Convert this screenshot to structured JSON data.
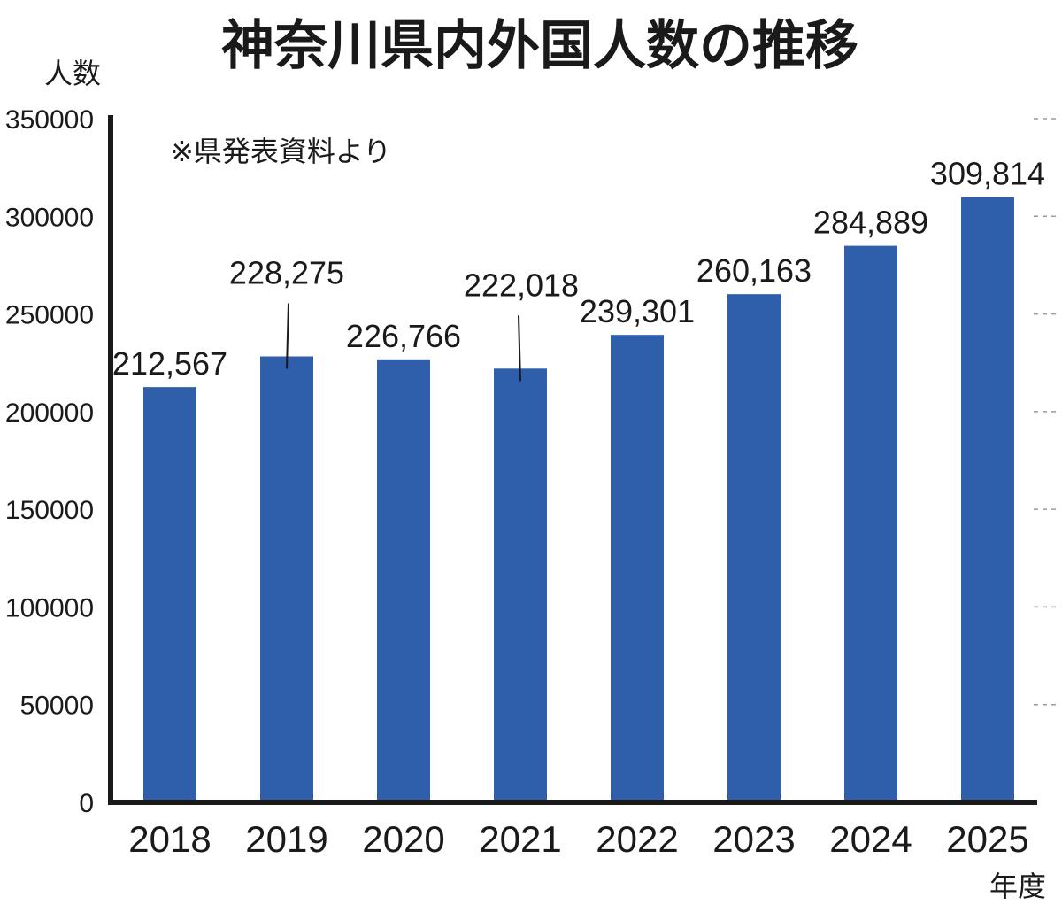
{
  "chart_data": {
    "type": "bar",
    "title": "神奈川県内外国人数の推移",
    "ylabel": "人数",
    "xlabel": "年度",
    "note": "※県発表資料より",
    "categories": [
      "2018",
      "2019",
      "2020",
      "2021",
      "2022",
      "2023",
      "2024",
      "2025"
    ],
    "values": [
      212567,
      228275,
      226766,
      222018,
      239301,
      260163,
      284889,
      309814
    ],
    "value_labels": [
      "212,567",
      "228,275",
      "226,766",
      "222,018",
      "239,301",
      "260,163",
      "284,889",
      "309,814"
    ],
    "ylim": [
      0,
      350000
    ],
    "yticks": [
      "0",
      "50000",
      "100000",
      "150000",
      "200000",
      "250000",
      "300000",
      "350000"
    ],
    "bar_color": "#2f5fab",
    "grid": false,
    "legend": "none"
  }
}
